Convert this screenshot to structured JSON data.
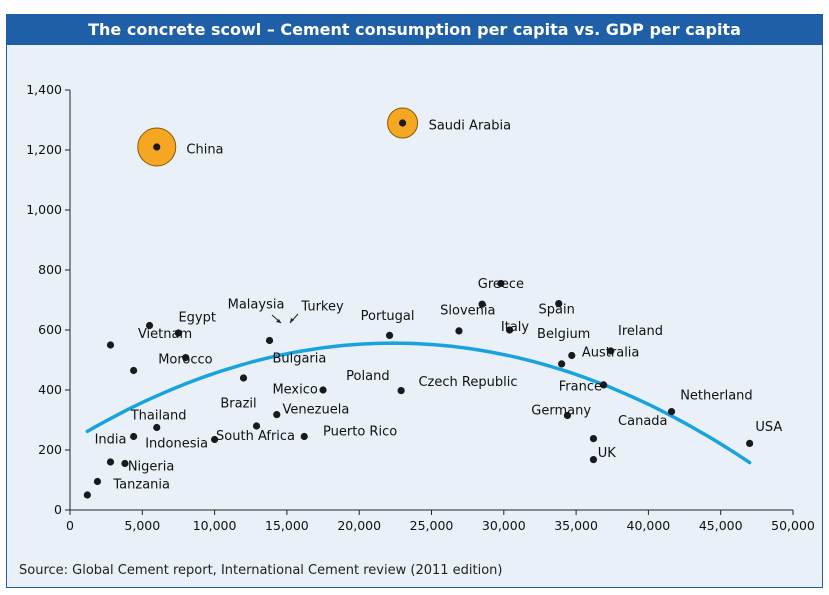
{
  "chart_data": {
    "type": "scatter",
    "title": "The concrete scowl – Cement consumption per capita vs. GDP per capita",
    "source": "Source: Global Cement report, International Cement review (2011 edition)",
    "xlim": [
      0,
      50000
    ],
    "ylim": [
      0,
      1400
    ],
    "x_ticks": [
      0,
      5000,
      10000,
      15000,
      20000,
      25000,
      30000,
      35000,
      40000,
      45000,
      50000
    ],
    "x_tick_labels": [
      "0",
      "5,000",
      "10,000",
      "15,000",
      "20,000",
      "25,000",
      "30,000",
      "35,000",
      "40,000",
      "45,000",
      "50,000"
    ],
    "y_ticks": [
      0,
      200,
      400,
      600,
      800,
      1000,
      1200,
      1400
    ],
    "y_tick_labels": [
      "0",
      "200",
      "400",
      "600",
      "800",
      "1,000",
      "1,200",
      "1,400"
    ],
    "grid": false,
    "points": [
      {
        "label": "China",
        "x": 6000,
        "y": 1210,
        "highlight": true
      },
      {
        "label": "Saudi Arabia",
        "x": 23000,
        "y": 1290,
        "highlight": true
      },
      {
        "label": "",
        "x": 1200,
        "y": 50
      },
      {
        "label": "Tanzania",
        "x": 1900,
        "y": 95
      },
      {
        "label": "",
        "x": 2800,
        "y": 160
      },
      {
        "label": "Nigeria",
        "x": 3800,
        "y": 155
      },
      {
        "label": "India",
        "x": 4400,
        "y": 245
      },
      {
        "label": "",
        "x": 2800,
        "y": 550
      },
      {
        "label": "",
        "x": 4400,
        "y": 465
      },
      {
        "label": "Vietnam",
        "x": 5500,
        "y": 615
      },
      {
        "label": "Thailand",
        "x": 6000,
        "y": 275
      },
      {
        "label": "Egypt",
        "x": 7500,
        "y": 590
      },
      {
        "label": "Morocco",
        "x": 8000,
        "y": 508
      },
      {
        "label": "Indonesia",
        "x": 10000,
        "y": 235
      },
      {
        "label": "Brazil",
        "x": 12000,
        "y": 440
      },
      {
        "label": "South Africa",
        "x": 12900,
        "y": 280
      },
      {
        "label": "Malaysia",
        "x": 13800,
        "y": 565
      },
      {
        "label": "Venezuela",
        "x": 14300,
        "y": 318
      },
      {
        "label": "Puerto Rico",
        "x": 16200,
        "y": 245
      },
      {
        "label": "Mexico",
        "x": 17500,
        "y": 400
      },
      {
        "label": "Portugal",
        "x": 22100,
        "y": 582
      },
      {
        "label": "Poland",
        "x": 22900,
        "y": 398
      },
      {
        "label": "Slovenia",
        "x": 26900,
        "y": 597
      },
      {
        "label": "Greece",
        "x": 28500,
        "y": 686
      },
      {
        "label": "",
        "x": 29800,
        "y": 755
      },
      {
        "label": "Italy",
        "x": 30400,
        "y": 600
      },
      {
        "label": "Spain",
        "x": 33800,
        "y": 688
      },
      {
        "label": "",
        "x": 34000,
        "y": 487
      },
      {
        "label": "Germany",
        "x": 34400,
        "y": 315
      },
      {
        "label": "Belgium",
        "x": 34700,
        "y": 515
      },
      {
        "label": "UK",
        "x": 36200,
        "y": 238
      },
      {
        "label": "",
        "x": 36200,
        "y": 168
      },
      {
        "label": "France",
        "x": 36900,
        "y": 417
      },
      {
        "label": "Ireland",
        "x": 37400,
        "y": 530
      },
      {
        "label": "Canada",
        "x": 41600,
        "y": 328
      },
      {
        "label": "USA",
        "x": 47000,
        "y": 222
      }
    ],
    "text_annotations": [
      {
        "text": "China",
        "x": 8050,
        "y": 1205
      },
      {
        "text": "Saudi Arabia",
        "x": 24800,
        "y": 1285
      },
      {
        "text": "Tanzania",
        "x": 3000,
        "y": 88
      },
      {
        "text": "Nigeria",
        "x": 4000,
        "y": 148
      },
      {
        "text": "India",
        "x": 1700,
        "y": 238
      },
      {
        "text": "Indonesia",
        "x": 5200,
        "y": 225
      },
      {
        "text": "Thailand",
        "x": 4200,
        "y": 318
      },
      {
        "text": "South Africa",
        "x": 10100,
        "y": 250
      },
      {
        "text": "Brazil",
        "x": 10400,
        "y": 358
      },
      {
        "text": "Venezuela",
        "x": 14700,
        "y": 338
      },
      {
        "text": "Puerto Rico",
        "x": 17500,
        "y": 265
      },
      {
        "text": "Mexico",
        "x": 14000,
        "y": 405
      },
      {
        "text": "Bulgaria",
        "x": 14000,
        "y": 508
      },
      {
        "text": "Malaysia",
        "x": 10900,
        "y": 688
      },
      {
        "text": "Turkey",
        "x": 16000,
        "y": 682
      },
      {
        "text": "Egypt",
        "x": 7500,
        "y": 645
      },
      {
        "text": "Vietnam",
        "x": 4700,
        "y": 590
      },
      {
        "text": "Morocco",
        "x": 6100,
        "y": 505
      },
      {
        "text": "Portugal",
        "x": 20100,
        "y": 650
      },
      {
        "text": "Poland",
        "x": 19100,
        "y": 450
      },
      {
        "text": "Czech Republic",
        "x": 24100,
        "y": 430
      },
      {
        "text": "Slovenia",
        "x": 25600,
        "y": 668
      },
      {
        "text": "Greece",
        "x": 28200,
        "y": 757
      },
      {
        "text": "Italy",
        "x": 29800,
        "y": 613
      },
      {
        "text": "Spain",
        "x": 32400,
        "y": 672
      },
      {
        "text": "Belgium",
        "x": 32300,
        "y": 590
      },
      {
        "text": "Ireland",
        "x": 37900,
        "y": 600
      },
      {
        "text": "Australia",
        "x": 35400,
        "y": 528
      },
      {
        "text": "France",
        "x": 33800,
        "y": 415
      },
      {
        "text": "Germany",
        "x": 31900,
        "y": 335
      },
      {
        "text": "Canada",
        "x": 37900,
        "y": 300
      },
      {
        "text": "UK",
        "x": 36500,
        "y": 193
      },
      {
        "text": "Netherland",
        "x": 42200,
        "y": 385
      },
      {
        "text": "USA",
        "x": 47400,
        "y": 280
      }
    ],
    "trendline": {
      "type": "quadratic",
      "x_range": [
        1200,
        47000
      ],
      "points": [
        [
          1200,
          262
        ],
        [
          23000,
          556
        ],
        [
          47000,
          158
        ]
      ]
    },
    "colors": {
      "points": "#1a1a1a",
      "highlight_fill": "#f5a623",
      "highlight_stroke": "#8a5a00",
      "trendline": "#19a3de",
      "title_bar": "#1f5fa8",
      "panel": "#e9f0f8"
    }
  }
}
